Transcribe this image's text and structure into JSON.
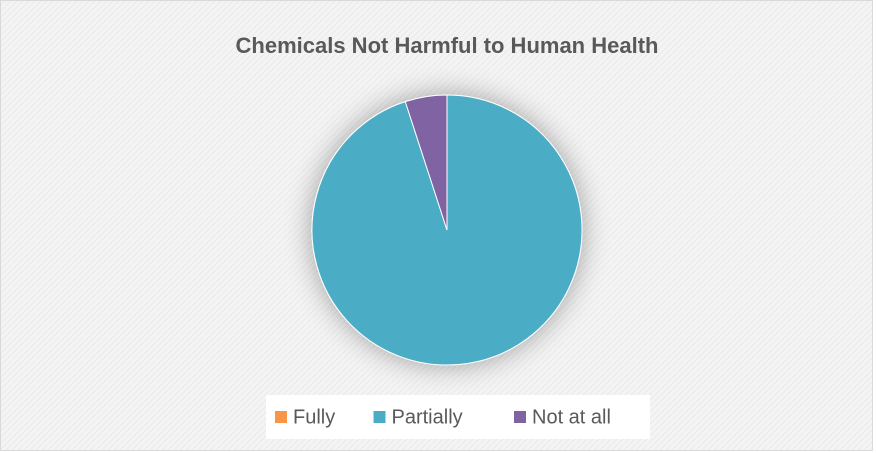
{
  "chart_data": {
    "type": "pie",
    "title": "Chemicals Not Harmful to Human Health",
    "categories": [
      "Fully",
      "Partially",
      "Not at all"
    ],
    "values": [
      0,
      95,
      5
    ],
    "colors": [
      "#f79646",
      "#4bacc6",
      "#8064a2"
    ],
    "legend": "bottom"
  }
}
